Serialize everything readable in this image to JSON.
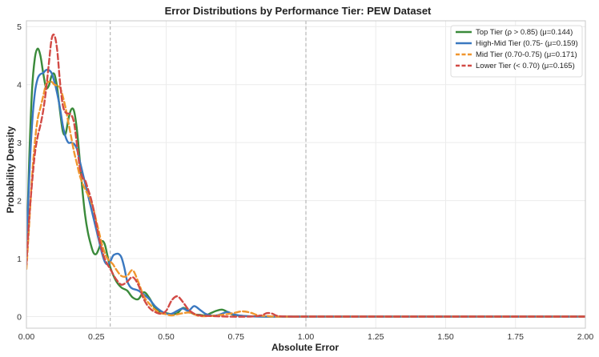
{
  "chart_data": {
    "type": "line",
    "title": "Error Distributions by Performance Tier: PEW Dataset",
    "xlabel": "Absolute Error",
    "ylabel": "Probability Density",
    "xlim": [
      0,
      2.0
    ],
    "ylim": [
      -0.2,
      5.1
    ],
    "xticks": [
      "0.00",
      "0.25",
      "0.50",
      "0.75",
      "1.00",
      "1.25",
      "1.50",
      "1.75",
      "2.00"
    ],
    "yticks": [
      "0",
      "1",
      "2",
      "3",
      "4",
      "5"
    ],
    "grid": true,
    "legend_position": "top-right",
    "reference_lines_x": [
      0.3,
      1.0
    ],
    "series": [
      {
        "name": "Top Tier (ρ > 0.85) (μ=0.144)",
        "color": "#3a8a3a",
        "dash": "solid",
        "points": [
          [
            0.0,
            1.0
          ],
          [
            0.01,
            2.7
          ],
          [
            0.02,
            3.9
          ],
          [
            0.03,
            4.45
          ],
          [
            0.04,
            4.62
          ],
          [
            0.05,
            4.5
          ],
          [
            0.06,
            4.2
          ],
          [
            0.07,
            3.95
          ],
          [
            0.08,
            3.98
          ],
          [
            0.09,
            4.15
          ],
          [
            0.1,
            4.18
          ],
          [
            0.11,
            3.95
          ],
          [
            0.12,
            3.55
          ],
          [
            0.13,
            3.2
          ],
          [
            0.14,
            3.15
          ],
          [
            0.15,
            3.4
          ],
          [
            0.16,
            3.57
          ],
          [
            0.17,
            3.55
          ],
          [
            0.18,
            3.25
          ],
          [
            0.19,
            2.75
          ],
          [
            0.2,
            2.2
          ],
          [
            0.21,
            1.75
          ],
          [
            0.22,
            1.45
          ],
          [
            0.23,
            1.25
          ],
          [
            0.24,
            1.1
          ],
          [
            0.25,
            1.08
          ],
          [
            0.26,
            1.18
          ],
          [
            0.27,
            1.3
          ],
          [
            0.28,
            1.25
          ],
          [
            0.29,
            1.05
          ],
          [
            0.3,
            0.85
          ],
          [
            0.32,
            0.62
          ],
          [
            0.34,
            0.5
          ],
          [
            0.36,
            0.45
          ],
          [
            0.38,
            0.33
          ],
          [
            0.4,
            0.3
          ],
          [
            0.42,
            0.42
          ],
          [
            0.44,
            0.32
          ],
          [
            0.46,
            0.15
          ],
          [
            0.48,
            0.07
          ],
          [
            0.5,
            0.06
          ],
          [
            0.52,
            0.04
          ],
          [
            0.54,
            0.06
          ],
          [
            0.56,
            0.15
          ],
          [
            0.58,
            0.1
          ],
          [
            0.6,
            0.04
          ],
          [
            0.62,
            0.03
          ],
          [
            0.64,
            0.02
          ],
          [
            0.66,
            0.06
          ],
          [
            0.68,
            0.1
          ],
          [
            0.7,
            0.12
          ],
          [
            0.72,
            0.08
          ],
          [
            0.74,
            0.03
          ],
          [
            0.78,
            0.01
          ],
          [
            0.85,
            0.0
          ],
          [
            1.0,
            0.0
          ],
          [
            1.5,
            0.0
          ],
          [
            2.0,
            0.0
          ]
        ]
      },
      {
        "name": "High-Mid Tier (0.75- (μ=0.159)",
        "color": "#3a78c0",
        "dash": "solid",
        "points": [
          [
            0.0,
            1.1
          ],
          [
            0.01,
            2.4
          ],
          [
            0.02,
            3.3
          ],
          [
            0.03,
            3.85
          ],
          [
            0.04,
            4.1
          ],
          [
            0.05,
            4.18
          ],
          [
            0.06,
            4.2
          ],
          [
            0.07,
            4.25
          ],
          [
            0.08,
            4.25
          ],
          [
            0.09,
            4.2
          ],
          [
            0.1,
            4.05
          ],
          [
            0.11,
            3.85
          ],
          [
            0.12,
            3.6
          ],
          [
            0.13,
            3.3
          ],
          [
            0.14,
            3.1
          ],
          [
            0.15,
            3.0
          ],
          [
            0.16,
            3.0
          ],
          [
            0.17,
            2.98
          ],
          [
            0.18,
            2.9
          ],
          [
            0.19,
            2.7
          ],
          [
            0.2,
            2.5
          ],
          [
            0.21,
            2.3
          ],
          [
            0.22,
            2.1
          ],
          [
            0.23,
            1.9
          ],
          [
            0.24,
            1.7
          ],
          [
            0.25,
            1.5
          ],
          [
            0.26,
            1.3
          ],
          [
            0.27,
            1.1
          ],
          [
            0.28,
            0.95
          ],
          [
            0.29,
            0.9
          ],
          [
            0.3,
            0.95
          ],
          [
            0.31,
            1.05
          ],
          [
            0.32,
            1.08
          ],
          [
            0.33,
            1.08
          ],
          [
            0.34,
            1.02
          ],
          [
            0.35,
            0.85
          ],
          [
            0.36,
            0.62
          ],
          [
            0.37,
            0.52
          ],
          [
            0.38,
            0.48
          ],
          [
            0.4,
            0.45
          ],
          [
            0.42,
            0.38
          ],
          [
            0.44,
            0.3
          ],
          [
            0.46,
            0.18
          ],
          [
            0.48,
            0.1
          ],
          [
            0.5,
            0.05
          ],
          [
            0.52,
            0.05
          ],
          [
            0.54,
            0.1
          ],
          [
            0.56,
            0.14
          ],
          [
            0.58,
            0.1
          ],
          [
            0.6,
            0.18
          ],
          [
            0.62,
            0.12
          ],
          [
            0.64,
            0.05
          ],
          [
            0.66,
            0.02
          ],
          [
            0.68,
            0.02
          ],
          [
            0.7,
            0.05
          ],
          [
            0.72,
            0.08
          ],
          [
            0.74,
            0.04
          ],
          [
            0.78,
            0.01
          ],
          [
            0.85,
            0.0
          ],
          [
            1.0,
            0.0
          ],
          [
            1.5,
            0.0
          ],
          [
            2.0,
            0.0
          ]
        ]
      },
      {
        "name": "Mid Tier (0.70-0.75) (μ=0.171)",
        "color": "#f0962e",
        "dash": "dashed",
        "points": [
          [
            0.0,
            0.82
          ],
          [
            0.01,
            1.6
          ],
          [
            0.02,
            2.4
          ],
          [
            0.03,
            3.0
          ],
          [
            0.04,
            3.4
          ],
          [
            0.05,
            3.6
          ],
          [
            0.06,
            3.8
          ],
          [
            0.07,
            4.0
          ],
          [
            0.08,
            4.05
          ],
          [
            0.09,
            4.05
          ],
          [
            0.1,
            4.0
          ],
          [
            0.11,
            3.98
          ],
          [
            0.12,
            3.95
          ],
          [
            0.13,
            3.8
          ],
          [
            0.14,
            3.6
          ],
          [
            0.15,
            3.35
          ],
          [
            0.16,
            3.1
          ],
          [
            0.17,
            2.85
          ],
          [
            0.18,
            2.65
          ],
          [
            0.19,
            2.45
          ],
          [
            0.2,
            2.3
          ],
          [
            0.21,
            2.2
          ],
          [
            0.22,
            2.1
          ],
          [
            0.23,
            2.0
          ],
          [
            0.24,
            1.85
          ],
          [
            0.25,
            1.65
          ],
          [
            0.26,
            1.45
          ],
          [
            0.27,
            1.25
          ],
          [
            0.28,
            1.1
          ],
          [
            0.29,
            1.0
          ],
          [
            0.3,
            0.95
          ],
          [
            0.31,
            0.9
          ],
          [
            0.32,
            0.82
          ],
          [
            0.34,
            0.7
          ],
          [
            0.36,
            0.7
          ],
          [
            0.38,
            0.8
          ],
          [
            0.4,
            0.6
          ],
          [
            0.42,
            0.35
          ],
          [
            0.44,
            0.22
          ],
          [
            0.46,
            0.12
          ],
          [
            0.48,
            0.06
          ],
          [
            0.5,
            0.04
          ],
          [
            0.52,
            0.02
          ],
          [
            0.55,
            0.05
          ],
          [
            0.58,
            0.07
          ],
          [
            0.6,
            0.04
          ],
          [
            0.62,
            0.01
          ],
          [
            0.66,
            0.01
          ],
          [
            0.7,
            0.03
          ],
          [
            0.74,
            0.06
          ],
          [
            0.77,
            0.09
          ],
          [
            0.8,
            0.07
          ],
          [
            0.83,
            0.02
          ],
          [
            0.86,
            0.01
          ],
          [
            0.9,
            0.0
          ],
          [
            1.0,
            0.0
          ],
          [
            1.5,
            0.0
          ],
          [
            2.0,
            0.0
          ]
        ]
      },
      {
        "name": "Lower Tier (< 0.70) (μ=0.165)",
        "color": "#d24a45",
        "dash": "dashed",
        "points": [
          [
            0.0,
            0.9
          ],
          [
            0.01,
            1.7
          ],
          [
            0.02,
            2.3
          ],
          [
            0.03,
            2.8
          ],
          [
            0.04,
            3.1
          ],
          [
            0.05,
            3.3
          ],
          [
            0.06,
            3.55
          ],
          [
            0.07,
            3.9
          ],
          [
            0.08,
            4.35
          ],
          [
            0.09,
            4.78
          ],
          [
            0.1,
            4.85
          ],
          [
            0.11,
            4.6
          ],
          [
            0.12,
            4.05
          ],
          [
            0.13,
            3.65
          ],
          [
            0.14,
            3.52
          ],
          [
            0.15,
            3.5
          ],
          [
            0.16,
            3.48
          ],
          [
            0.17,
            3.35
          ],
          [
            0.18,
            3.0
          ],
          [
            0.19,
            2.6
          ],
          [
            0.2,
            2.4
          ],
          [
            0.21,
            2.35
          ],
          [
            0.22,
            2.2
          ],
          [
            0.23,
            2.05
          ],
          [
            0.24,
            1.85
          ],
          [
            0.25,
            1.6
          ],
          [
            0.26,
            1.35
          ],
          [
            0.27,
            1.15
          ],
          [
            0.28,
            1.0
          ],
          [
            0.29,
            0.9
          ],
          [
            0.3,
            0.82
          ],
          [
            0.32,
            0.65
          ],
          [
            0.34,
            0.55
          ],
          [
            0.36,
            0.6
          ],
          [
            0.38,
            0.68
          ],
          [
            0.4,
            0.55
          ],
          [
            0.42,
            0.3
          ],
          [
            0.44,
            0.15
          ],
          [
            0.46,
            0.08
          ],
          [
            0.48,
            0.05
          ],
          [
            0.5,
            0.1
          ],
          [
            0.52,
            0.28
          ],
          [
            0.54,
            0.35
          ],
          [
            0.56,
            0.25
          ],
          [
            0.58,
            0.12
          ],
          [
            0.6,
            0.05
          ],
          [
            0.62,
            0.02
          ],
          [
            0.66,
            0.01
          ],
          [
            0.72,
            0.0
          ],
          [
            0.8,
            0.0
          ],
          [
            0.84,
            0.02
          ],
          [
            0.86,
            0.06
          ],
          [
            0.88,
            0.05
          ],
          [
            0.9,
            0.01
          ],
          [
            0.95,
            0.0
          ],
          [
            1.0,
            0.0
          ],
          [
            1.5,
            0.0
          ],
          [
            2.0,
            0.0
          ]
        ]
      }
    ]
  }
}
